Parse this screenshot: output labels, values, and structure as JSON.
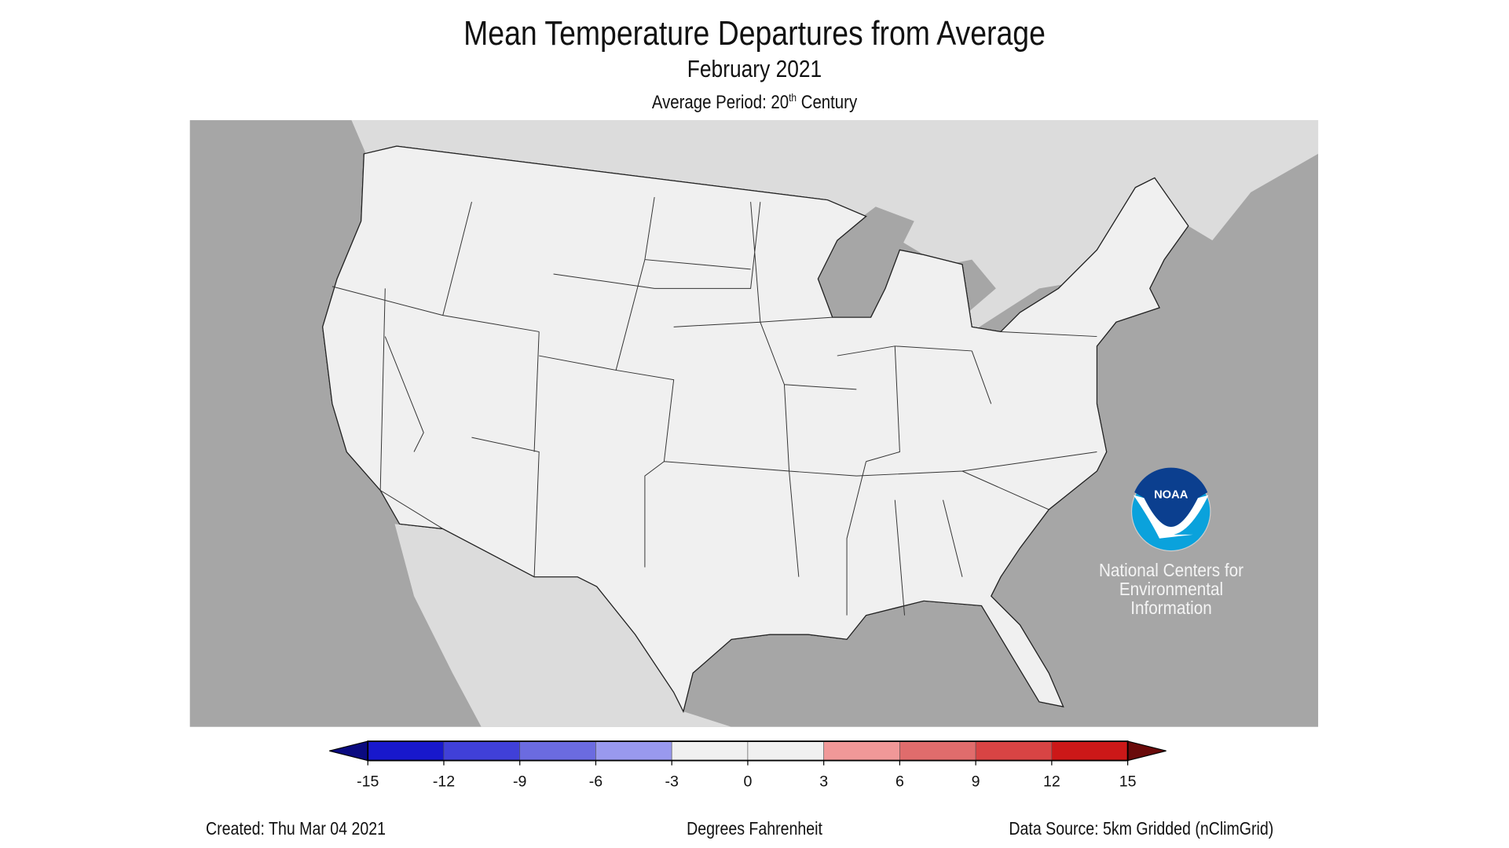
{
  "title": "Mean Temperature Departures from Average",
  "subtitle": "February 2021",
  "average_period": {
    "prefix": "Average Period: 20",
    "sup": "th",
    "suffix": " Century"
  },
  "legend": {
    "ticks": [
      "-15",
      "-12",
      "-9",
      "-6",
      "-3",
      "0",
      "3",
      "6",
      "9",
      "12",
      "15"
    ],
    "colors": [
      "#1818cc",
      "#4040d8",
      "#6b6be0",
      "#9999ee",
      "#f0f0f0",
      "#f0f0f0",
      "#f09898",
      "#e06c6c",
      "#d84444",
      "#cc1818"
    ],
    "under_color": "#0a0a80",
    "over_color": "#6a0a0a",
    "units": "Degrees Fahrenheit"
  },
  "footer": {
    "created": "Created: Thu Mar 04 2021",
    "source": "Data Source: 5km Gridded (nClimGrid)"
  },
  "logo": {
    "text": "NOAA",
    "org_lines": [
      "National Centers for",
      "Environmental",
      "Information"
    ]
  },
  "map_colors": {
    "ocean": "#a6a6a6",
    "neighbor_land": "#dcdcdc",
    "us_land": "#f0f0f0"
  }
}
